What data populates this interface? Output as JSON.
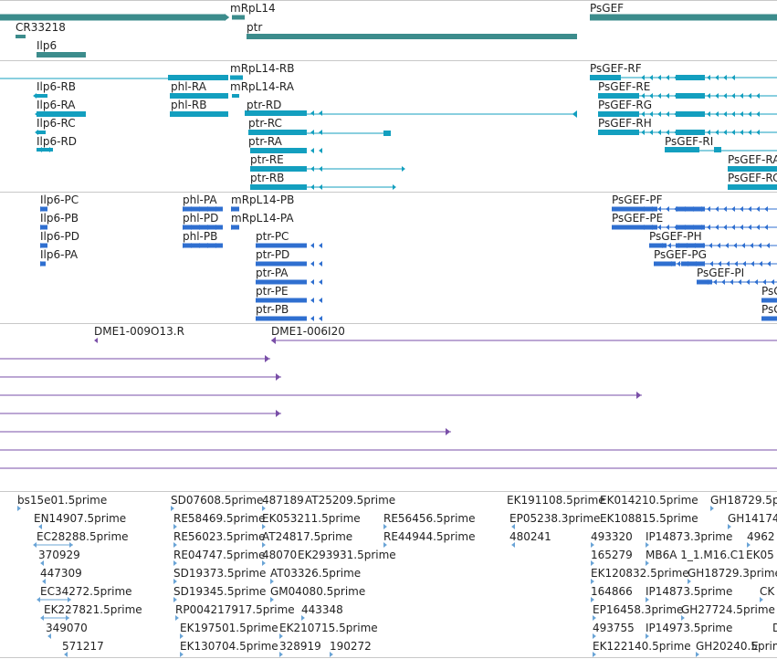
{
  "tracks": [
    {
      "name": "genes",
      "labels": [
        "mRpL14",
        "PsGEF",
        "CR33218",
        "ptr",
        "Ilp6"
      ]
    },
    {
      "name": "transcripts-1",
      "labels": [
        "mRpL14-RB",
        "PsGEF-RF",
        "Ilp6-RB",
        "phl-RA",
        "mRpL14-RA",
        "PsGEF-RE",
        "Ilp6-RA",
        "phl-RB",
        "ptr-RD",
        "PsGEF-RG",
        "Ilp6-RC",
        "ptr-RC",
        "PsGEF-RH",
        "Ilp6-RD",
        "ptr-RA",
        "PsGEF-RI",
        "ptr-RE",
        "PsGEF-RA",
        "ptr-RB",
        "PsGEF-RC"
      ]
    },
    {
      "name": "transcripts-2",
      "labels": [
        "Ilp6-PC",
        "phl-PA",
        "mRpL14-PB",
        "PsGEF-PF",
        "Ilp6-PB",
        "phl-PD",
        "mRpL14-PA",
        "PsGEF-PE",
        "Ilp6-PD",
        "phl-PB",
        "ptr-PC",
        "PsGEF-PH",
        "Ilp6-PA",
        "ptr-PD",
        "PsGEF-PG",
        "ptr-PA",
        "PsGEF-PI",
        "ptr-PE",
        "PsG",
        "ptr-PB",
        "PsG"
      ]
    },
    {
      "name": "clones",
      "labels": [
        "DME1-009O13.R",
        "DME1-006I20"
      ]
    },
    {
      "name": "ests",
      "labels": [
        "bs15e01.5prime",
        "SD07608.5prime",
        "487189",
        "AT25209.5prime",
        "EK191108.5prime",
        "EK014210.5prime",
        "GH18729.5p",
        "EN14907.5prime",
        "RE58469.5prime",
        "EK053211.5prime",
        "RE56456.5prime",
        "EP05238.3prime",
        "EK108815.5prime",
        "GH14174",
        "EC28288.5prime",
        "RE56023.5prime",
        "AT24817.5prime",
        "RE44944.5prime",
        "480241",
        "493320",
        "IP14873.3prime",
        "4962",
        "370929",
        "RE04747.5prime",
        "48070",
        "EK293931.5prime",
        "165279",
        "MB6A 1_1.M16.C1",
        "EK05",
        "447309",
        "SD19373.5prime",
        "AT03326.5prime",
        "EK120832.5prime",
        "GH18729.3prime",
        "EC34272.5prime",
        "SD19345.5prime",
        "GM04080.5prime",
        "164866",
        "IP14873.5prime",
        "CK",
        "EK227821.5prime",
        "RP004217917.5prime",
        "443348",
        "EP16458.3prime",
        "GH27724.5prime",
        "349070",
        "EK197501.5prime",
        "EK210715.5prime",
        "493755",
        "IP14973.5prime",
        "D",
        "571217",
        "EK130704.5prime",
        "328919",
        "190272",
        "EK122140.5prime",
        "GH20240.5prime",
        "E"
      ]
    }
  ],
  "colors": {
    "gene": "#3c8c8c",
    "transcript": "#139fbf",
    "protein": "#2f6fd0",
    "clone": "#7a4fa8",
    "est": "#6aa4d6"
  }
}
